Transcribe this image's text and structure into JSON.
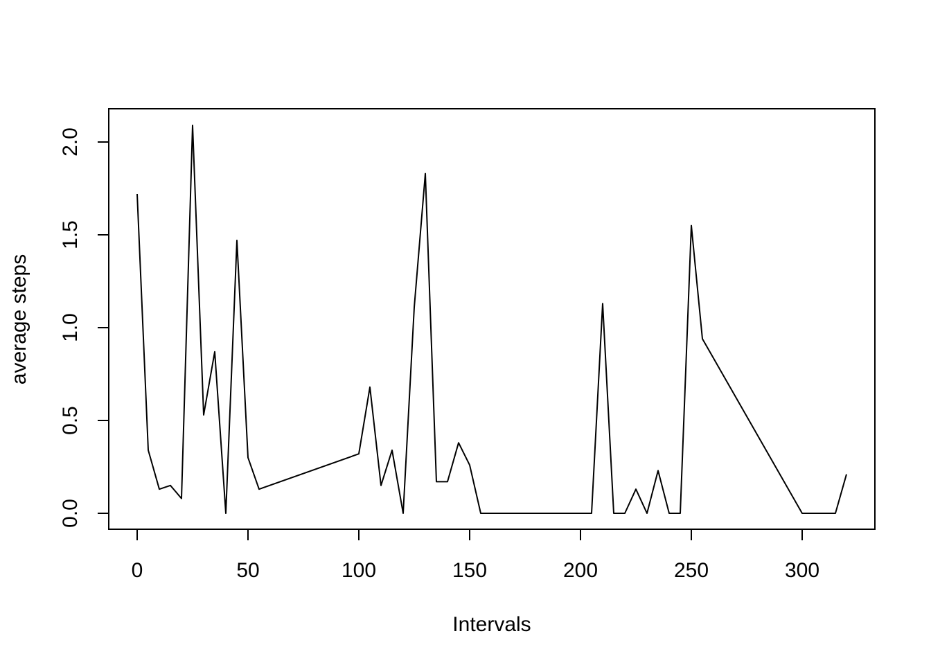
{
  "chart_data": {
    "type": "line",
    "title": "",
    "xlabel": "Intervals",
    "ylabel": "average steps",
    "xlim": [
      0,
      320
    ],
    "ylim": [
      0,
      2.1
    ],
    "x_ticks": [
      "0",
      "50",
      "100",
      "150",
      "200",
      "250",
      "300"
    ],
    "y_ticks": [
      "0.0",
      "0.5",
      "1.0",
      "1.5",
      "2.0"
    ],
    "grid": false,
    "legend": "none",
    "series": [
      {
        "color": "#000000",
        "points": [
          [
            0,
            1.72
          ],
          [
            5,
            0.34
          ],
          [
            10,
            0.13
          ],
          [
            15,
            0.15
          ],
          [
            20,
            0.08
          ],
          [
            25,
            2.09
          ],
          [
            30,
            0.53
          ],
          [
            35,
            0.87
          ],
          [
            40,
            0.0
          ],
          [
            45,
            1.47
          ],
          [
            50,
            0.3
          ],
          [
            55,
            0.13
          ],
          [
            100,
            0.32
          ],
          [
            105,
            0.68
          ],
          [
            110,
            0.15
          ],
          [
            115,
            0.34
          ],
          [
            120,
            0.0
          ],
          [
            125,
            1.11
          ],
          [
            130,
            1.83
          ],
          [
            135,
            0.17
          ],
          [
            140,
            0.17
          ],
          [
            145,
            0.38
          ],
          [
            150,
            0.26
          ],
          [
            155,
            0.0
          ],
          [
            200,
            0.0
          ],
          [
            205,
            0.0
          ],
          [
            210,
            1.13
          ],
          [
            215,
            0.0
          ],
          [
            220,
            0.0
          ],
          [
            225,
            0.13
          ],
          [
            230,
            0.0
          ],
          [
            235,
            0.23
          ],
          [
            240,
            0.0
          ],
          [
            245,
            0.0
          ],
          [
            250,
            1.55
          ],
          [
            255,
            0.94
          ],
          [
            300,
            0.0
          ],
          [
            305,
            0.0
          ],
          [
            310,
            0.0
          ],
          [
            315,
            0.0
          ],
          [
            320,
            0.21
          ]
        ]
      }
    ]
  }
}
